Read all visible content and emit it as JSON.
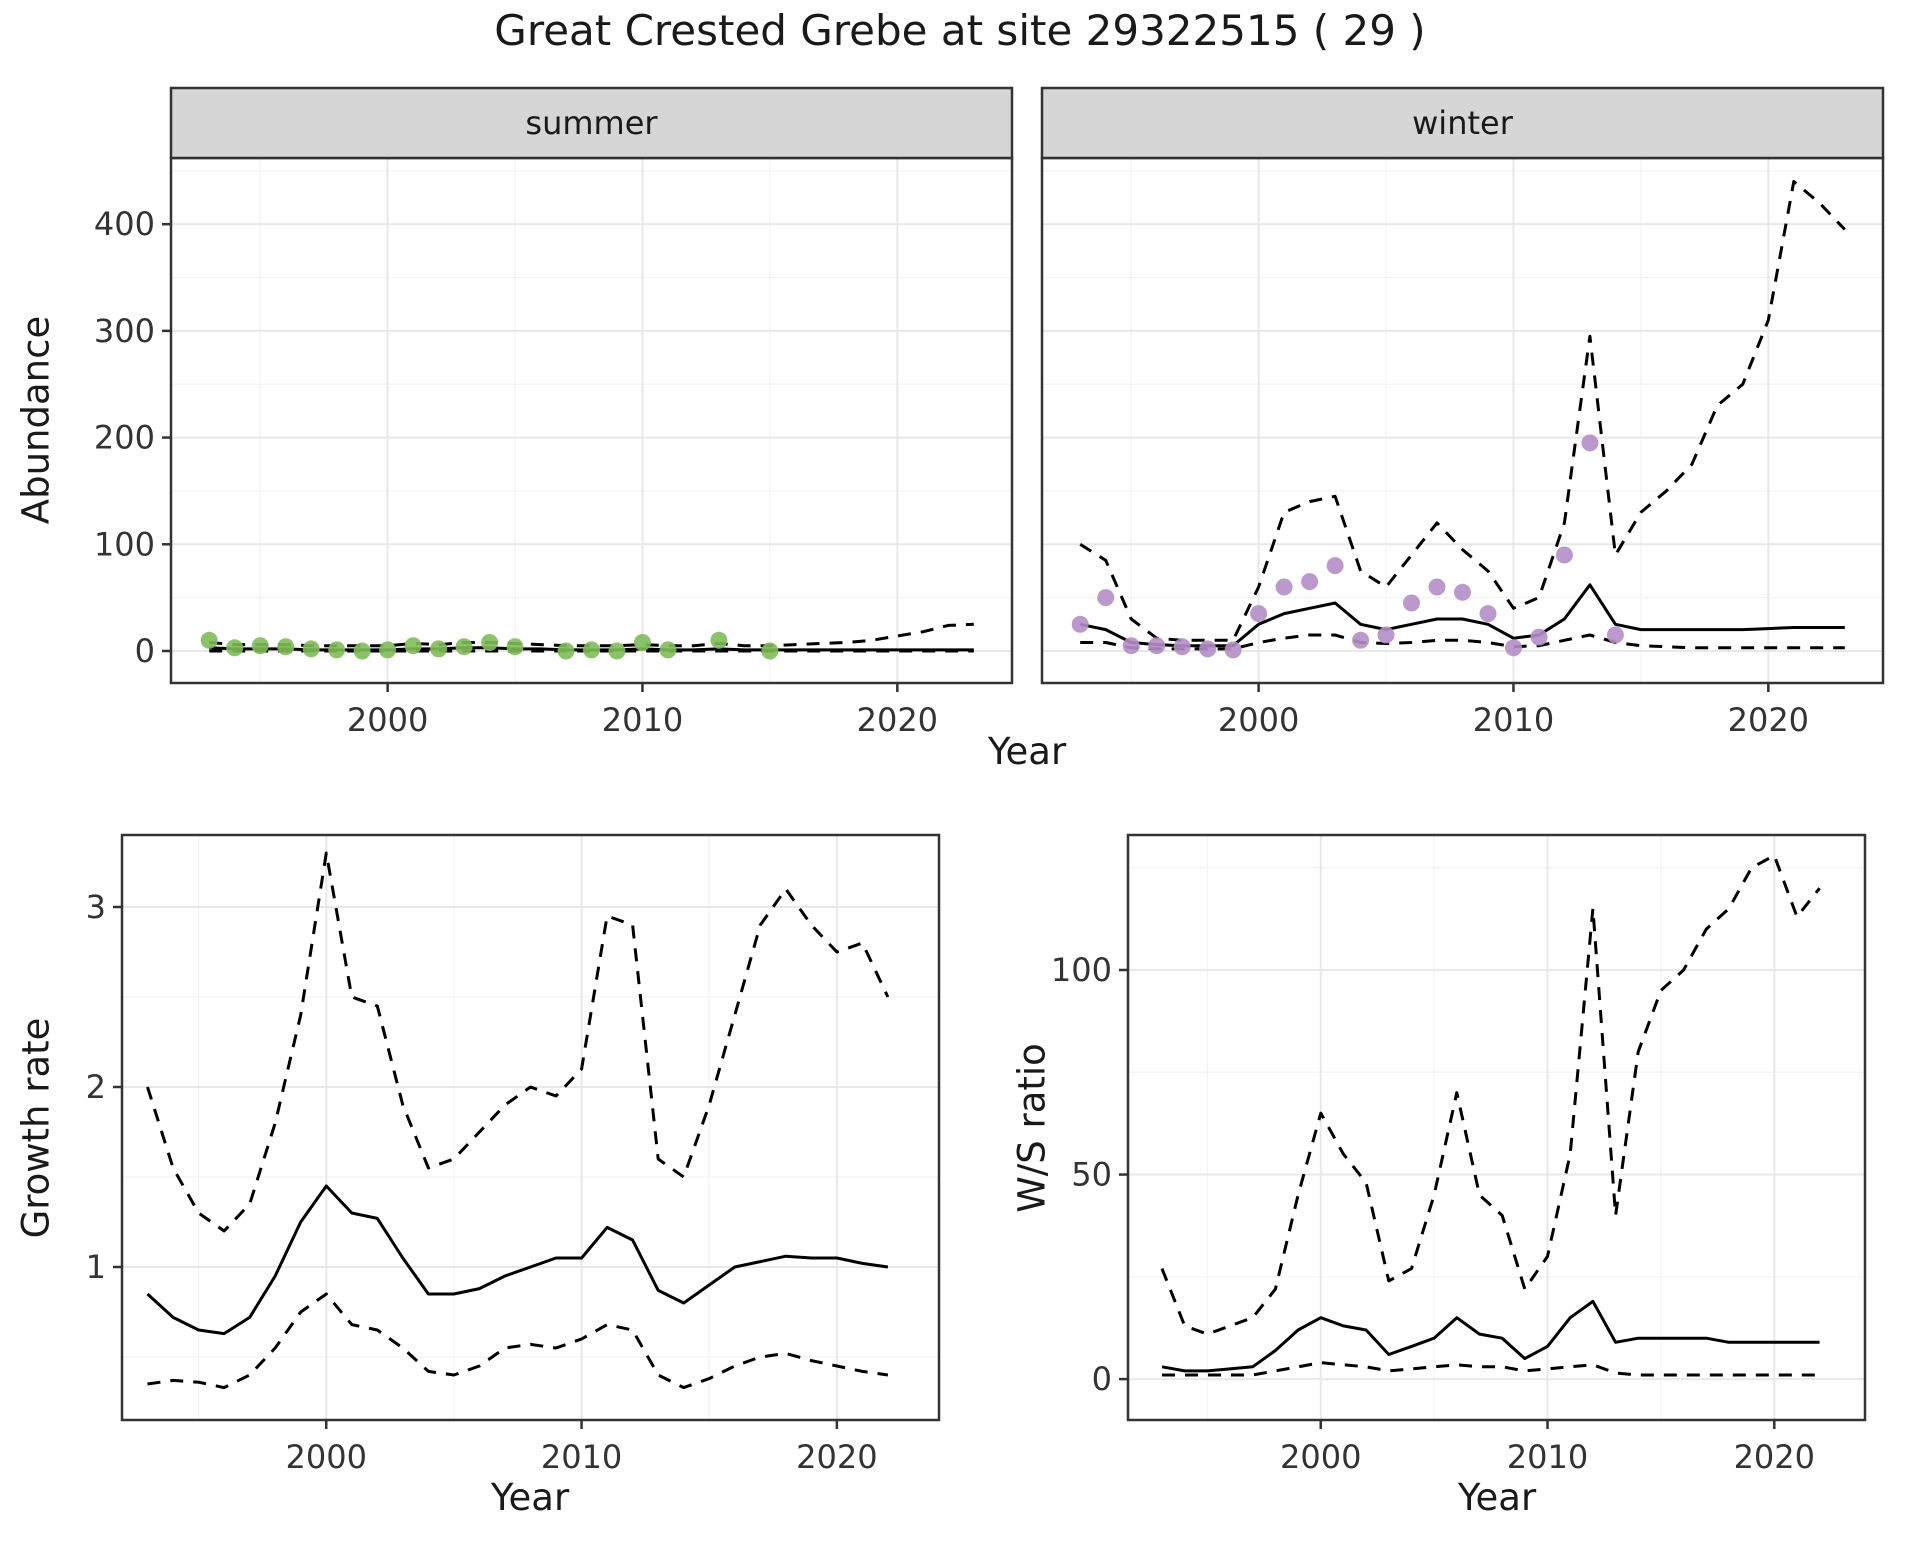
{
  "title": "Great Crested Grebe at site 29322515 ( 29 )",
  "colors": {
    "line": "#000000",
    "summer_point": "#7FBC59",
    "winter_point": "#B48EC8",
    "strip_bg": "#D6D6D6",
    "grid_major": "#E8E8E8",
    "grid_minor": "#F3F3F3",
    "border": "#333333",
    "tick_label": "#333333",
    "text": "#1A1A1A",
    "panel_bg": "#FFFFFF"
  },
  "chart_data": [
    {
      "id": "abundance-summer",
      "type": "line",
      "facet_label": "summer",
      "xlabel": "Year",
      "ylabel": "Abundance",
      "xlim": [
        1991.5,
        2024.5
      ],
      "ylim": [
        -30,
        462
      ],
      "xticks": [
        2000,
        2010,
        2020
      ],
      "yticks": [
        0,
        100,
        200,
        300,
        400
      ],
      "grid": true,
      "series": [
        {
          "name": "lower_ci",
          "style": "dashed",
          "x": [
            1993,
            1994,
            1995,
            1996,
            1997,
            1998,
            1999,
            2000,
            2001,
            2002,
            2003,
            2004,
            2005,
            2006,
            2007,
            2008,
            2009,
            2010,
            2011,
            2012,
            2013,
            2014,
            2015,
            2016,
            2017,
            2018,
            2019,
            2020,
            2021,
            2022,
            2023
          ],
          "y": [
            0,
            0,
            0,
            0,
            0,
            0,
            0,
            0,
            0,
            0,
            0,
            0,
            0,
            0,
            0,
            0,
            0,
            0,
            0,
            0,
            0,
            0,
            0,
            0,
            0,
            0,
            0,
            0,
            0,
            0,
            0
          ]
        },
        {
          "name": "upper_ci",
          "style": "dashed",
          "x": [
            1993,
            1994,
            1995,
            1996,
            1997,
            1998,
            1999,
            2000,
            2001,
            2002,
            2003,
            2004,
            2005,
            2006,
            2007,
            2008,
            2009,
            2010,
            2011,
            2012,
            2013,
            2014,
            2015,
            2016,
            2017,
            2018,
            2019,
            2020,
            2021,
            2022,
            2023
          ],
          "y": [
            8,
            6,
            6,
            6,
            5,
            5,
            5,
            5,
            7,
            6,
            8,
            8,
            7,
            6,
            5,
            5,
            5,
            6,
            5,
            5,
            7,
            5,
            5,
            6,
            7,
            8,
            10,
            14,
            18,
            24,
            25
          ]
        },
        {
          "name": "median",
          "style": "solid",
          "x": [
            1993,
            1994,
            1995,
            1996,
            1997,
            1998,
            1999,
            2000,
            2001,
            2002,
            2003,
            2004,
            2005,
            2006,
            2007,
            2008,
            2009,
            2010,
            2011,
            2012,
            2013,
            2014,
            2015,
            2016,
            2017,
            2018,
            2019,
            2020,
            2021,
            2022,
            2023
          ],
          "y": [
            3,
            2,
            2,
            2,
            1,
            1,
            1,
            1,
            2,
            2,
            3,
            3,
            2,
            2,
            1,
            1,
            1,
            2,
            1,
            1,
            2,
            1,
            1,
            1,
            1,
            1,
            1,
            1,
            1,
            1,
            1
          ]
        },
        {
          "name": "observed",
          "style": "points",
          "color_key": "summer_point",
          "x": [
            1993,
            1994,
            1995,
            1996,
            1997,
            1998,
            1999,
            2000,
            2001,
            2002,
            2003,
            2004,
            2005,
            2007,
            2008,
            2009,
            2010,
            2011,
            2013,
            2015
          ],
          "y": [
            10,
            3,
            5,
            4,
            2,
            1,
            0,
            1,
            5,
            2,
            4,
            8,
            4,
            0,
            1,
            0,
            8,
            1,
            10,
            0
          ]
        }
      ]
    },
    {
      "id": "abundance-winter",
      "type": "line",
      "facet_label": "winter",
      "xlabel": "Year",
      "ylabel": "Abundance",
      "xlim": [
        1991.5,
        2024.5
      ],
      "ylim": [
        -30,
        462
      ],
      "xticks": [
        2000,
        2010,
        2020
      ],
      "yticks": [
        0,
        100,
        200,
        300,
        400
      ],
      "grid": true,
      "series": [
        {
          "name": "lower_ci",
          "style": "dashed",
          "x": [
            1993,
            1994,
            1995,
            1996,
            1997,
            1998,
            1999,
            2000,
            2001,
            2002,
            2003,
            2004,
            2005,
            2006,
            2007,
            2008,
            2009,
            2010,
            2011,
            2012,
            2013,
            2014,
            2015,
            2016,
            2017,
            2018,
            2019,
            2020,
            2021,
            2022,
            2023
          ],
          "y": [
            8,
            8,
            3,
            2,
            2,
            2,
            2,
            8,
            12,
            15,
            15,
            8,
            7,
            8,
            10,
            10,
            8,
            4,
            5,
            10,
            15,
            8,
            5,
            4,
            3,
            3,
            3,
            3,
            3,
            3,
            3
          ]
        },
        {
          "name": "upper_ci",
          "style": "dashed",
          "x": [
            1993,
            1994,
            1995,
            1996,
            1997,
            1998,
            1999,
            2000,
            2001,
            2002,
            2003,
            2004,
            2005,
            2006,
            2007,
            2008,
            2009,
            2010,
            2011,
            2012,
            2013,
            2014,
            2015,
            2016,
            2017,
            2018,
            2019,
            2020,
            2021,
            2022,
            2023
          ],
          "y": [
            100,
            85,
            30,
            12,
            10,
            10,
            10,
            60,
            130,
            140,
            145,
            75,
            60,
            90,
            120,
            95,
            75,
            40,
            50,
            120,
            295,
            90,
            130,
            150,
            175,
            230,
            250,
            310,
            440,
            420,
            395
          ]
        },
        {
          "name": "median",
          "style": "solid",
          "x": [
            1993,
            1994,
            1995,
            1996,
            1997,
            1998,
            1999,
            2000,
            2001,
            2002,
            2003,
            2004,
            2005,
            2006,
            2007,
            2008,
            2009,
            2010,
            2011,
            2012,
            2013,
            2014,
            2015,
            2016,
            2017,
            2018,
            2019,
            2020,
            2021,
            2022,
            2023
          ],
          "y": [
            25,
            20,
            8,
            6,
            5,
            5,
            5,
            25,
            35,
            40,
            45,
            25,
            20,
            25,
            30,
            30,
            25,
            12,
            15,
            30,
            62,
            25,
            20,
            20,
            20,
            20,
            20,
            21,
            22,
            22,
            22
          ]
        },
        {
          "name": "observed",
          "style": "points",
          "color_key": "winter_point",
          "x": [
            1993,
            1994,
            1995,
            1996,
            1997,
            1998,
            1999,
            2000,
            2001,
            2002,
            2003,
            2004,
            2005,
            2006,
            2007,
            2008,
            2009,
            2010,
            2011,
            2012,
            2013,
            2014
          ],
          "y": [
            25,
            50,
            5,
            5,
            4,
            2,
            1,
            35,
            60,
            65,
            80,
            10,
            15,
            45,
            60,
            55,
            35,
            3,
            13,
            90,
            195,
            15
          ]
        }
      ]
    },
    {
      "id": "growth-rate",
      "type": "line",
      "facet_label": "",
      "xlabel": "Year",
      "ylabel": "Growth rate",
      "xlim": [
        1992,
        2024
      ],
      "ylim": [
        0.15,
        3.4
      ],
      "xticks": [
        2000,
        2010,
        2020
      ],
      "yticks": [
        1,
        2,
        3
      ],
      "grid": true,
      "series": [
        {
          "name": "lower_ci",
          "style": "dashed",
          "x": [
            1993,
            1994,
            1995,
            1996,
            1997,
            1998,
            1999,
            2000,
            2001,
            2002,
            2003,
            2004,
            2005,
            2006,
            2007,
            2008,
            2009,
            2010,
            2011,
            2012,
            2013,
            2014,
            2015,
            2016,
            2017,
            2018,
            2019,
            2020,
            2021,
            2022
          ],
          "y": [
            0.35,
            0.37,
            0.36,
            0.33,
            0.4,
            0.55,
            0.75,
            0.85,
            0.68,
            0.65,
            0.55,
            0.42,
            0.4,
            0.45,
            0.55,
            0.57,
            0.55,
            0.6,
            0.68,
            0.65,
            0.4,
            0.33,
            0.38,
            0.45,
            0.5,
            0.52,
            0.48,
            0.45,
            0.42,
            0.4
          ]
        },
        {
          "name": "upper_ci",
          "style": "dashed",
          "x": [
            1993,
            1994,
            1995,
            1996,
            1997,
            1998,
            1999,
            2000,
            2001,
            2002,
            2003,
            2004,
            2005,
            2006,
            2007,
            2008,
            2009,
            2010,
            2011,
            2012,
            2013,
            2014,
            2015,
            2016,
            2017,
            2018,
            2019,
            2020,
            2021,
            2022
          ],
          "y": [
            2.0,
            1.55,
            1.3,
            1.2,
            1.35,
            1.8,
            2.4,
            3.3,
            2.5,
            2.45,
            1.9,
            1.55,
            1.6,
            1.75,
            1.9,
            2.0,
            1.95,
            2.1,
            2.95,
            2.9,
            1.6,
            1.5,
            1.9,
            2.4,
            2.9,
            3.1,
            2.9,
            2.75,
            2.8,
            2.5
          ]
        },
        {
          "name": "median",
          "style": "solid",
          "x": [
            1993,
            1994,
            1995,
            1996,
            1997,
            1998,
            1999,
            2000,
            2001,
            2002,
            2003,
            2004,
            2005,
            2006,
            2007,
            2008,
            2009,
            2010,
            2011,
            2012,
            2013,
            2014,
            2015,
            2016,
            2017,
            2018,
            2019,
            2020,
            2021,
            2022
          ],
          "y": [
            0.85,
            0.72,
            0.65,
            0.63,
            0.72,
            0.95,
            1.25,
            1.45,
            1.3,
            1.27,
            1.05,
            0.85,
            0.85,
            0.88,
            0.95,
            1.0,
            1.05,
            1.05,
            1.22,
            1.15,
            0.87,
            0.8,
            0.9,
            1.0,
            1.03,
            1.06,
            1.05,
            1.05,
            1.02,
            1.0
          ]
        }
      ]
    },
    {
      "id": "ws-ratio",
      "type": "line",
      "facet_label": "",
      "xlabel": "Year",
      "ylabel": "W/S ratio",
      "xlim": [
        1991.5,
        2024
      ],
      "ylim": [
        -10,
        133
      ],
      "xticks": [
        2000,
        2010,
        2020
      ],
      "yticks": [
        0,
        50,
        100
      ],
      "grid": true,
      "series": [
        {
          "name": "lower_ci",
          "style": "dashed",
          "x": [
            1993,
            1994,
            1995,
            1996,
            1997,
            1998,
            1999,
            2000,
            2001,
            2002,
            2003,
            2004,
            2005,
            2006,
            2007,
            2008,
            2009,
            2010,
            2011,
            2012,
            2013,
            2014,
            2015,
            2016,
            2017,
            2018,
            2019,
            2020,
            2021,
            2022
          ],
          "y": [
            1,
            1,
            1,
            1,
            1,
            2,
            3,
            4,
            3.5,
            3,
            2,
            2.5,
            3,
            3.5,
            3,
            3,
            2,
            2.5,
            3,
            3.5,
            1.5,
            1,
            1,
            1,
            1,
            1,
            1,
            1,
            1,
            1
          ]
        },
        {
          "name": "upper_ci",
          "style": "dashed",
          "x": [
            1993,
            1994,
            1995,
            1996,
            1997,
            1998,
            1999,
            2000,
            2001,
            2002,
            2003,
            2004,
            2005,
            2006,
            2007,
            2008,
            2009,
            2010,
            2011,
            2012,
            2013,
            2014,
            2015,
            2016,
            2017,
            2018,
            2019,
            2020,
            2021,
            2022
          ],
          "y": [
            27,
            13,
            11,
            13,
            15,
            22,
            45,
            65,
            55,
            48,
            24,
            27,
            45,
            70,
            45,
            40,
            22,
            30,
            55,
            115,
            40,
            80,
            95,
            100,
            110,
            115,
            125,
            128,
            113,
            120
          ]
        },
        {
          "name": "median",
          "style": "solid",
          "x": [
            1993,
            1994,
            1995,
            1996,
            1997,
            1998,
            1999,
            2000,
            2001,
            2002,
            2003,
            2004,
            2005,
            2006,
            2007,
            2008,
            2009,
            2010,
            2011,
            2012,
            2013,
            2014,
            2015,
            2016,
            2017,
            2018,
            2019,
            2020,
            2021,
            2022
          ],
          "y": [
            3,
            2,
            2,
            2.5,
            3,
            7,
            12,
            15,
            13,
            12,
            6,
            8,
            10,
            15,
            11,
            10,
            5,
            8,
            15,
            19,
            9,
            10,
            10,
            10,
            10,
            9,
            9,
            9,
            9,
            9
          ]
        }
      ]
    }
  ]
}
